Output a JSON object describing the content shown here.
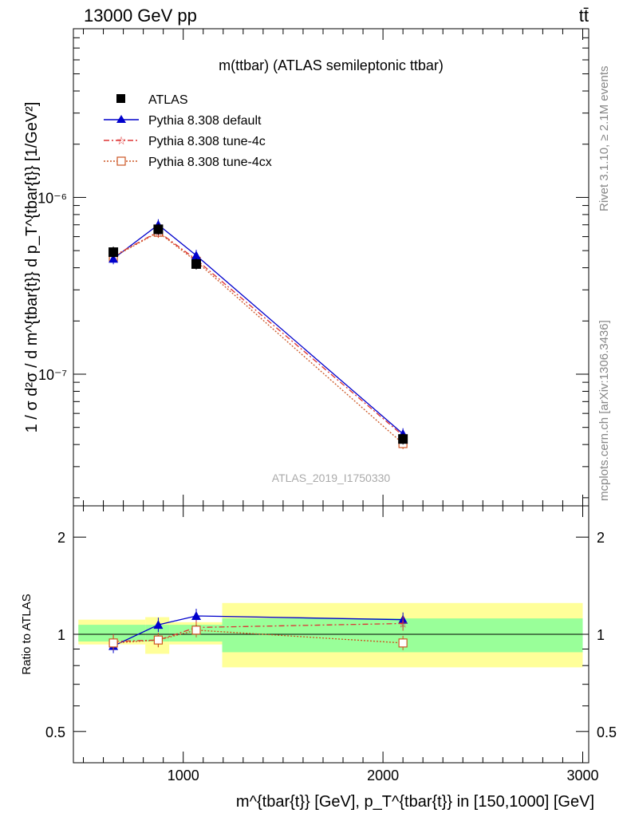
{
  "header": {
    "energy": "13000 GeV pp",
    "process": "tt̄",
    "right_top": "Rivet 3.1.10, ≥ 2.1M events",
    "right_bottom": "mcplots.cern.ch [arXiv:1306.3436]"
  },
  "chart_data": [
    {
      "type": "line",
      "title": "m(ttbar) (ATLAS semileptonic ttbar)",
      "analysis_id": "ATLAS_2019_I1750330",
      "ylabel": "1 / σ d²σ / d m^{tbar{t}} d p_T^{tbar{t}} [1/GeV²]",
      "yscale": "log",
      "ylim": [
        1.8e-08,
        9e-06
      ],
      "xlim": [
        450,
        3030
      ],
      "ytick_labels": [
        "10⁻⁷",
        "10⁻⁶"
      ],
      "legend_position": "top-left",
      "x": [
        650,
        875,
        1065,
        2100
      ],
      "series": [
        {
          "name": "ATLAS",
          "color": "#000000",
          "marker": "square-filled",
          "values": [
            4.9e-07,
            6.6e-07,
            4.2e-07,
            4.3e-08
          ]
        },
        {
          "name": "Pythia 8.308 default",
          "color": "#0000cc",
          "marker": "triangle",
          "values": [
            4.5e-07,
            7e-07,
            4.7e-07,
            4.6e-08
          ]
        },
        {
          "name": "Pythia 8.308 tune-4c",
          "color": "#dd3333",
          "marker": "star",
          "values": [
            4.65e-07,
            6.4e-07,
            4.45e-07,
            4.5e-08
          ]
        },
        {
          "name": "Pythia 8.308 tune-4cx",
          "color": "#cc5522",
          "marker": "square-open",
          "values": [
            4.6e-07,
            6.35e-07,
            4.35e-07,
            4.05e-08
          ]
        }
      ]
    },
    {
      "type": "line",
      "ylabel": "Ratio to ATLAS",
      "xlabel": "m^{tbar{t}} [GeV], p_T^{tbar{t}} in [150,1000] [GeV]",
      "yscale": "log",
      "ylim": [
        0.4,
        2.5
      ],
      "xlim": [
        450,
        3030
      ],
      "ytick_labels": [
        "0.5",
        "1",
        "2"
      ],
      "xtick_labels": [
        "1000",
        "2000",
        "3000"
      ],
      "x": [
        650,
        875,
        1065,
        2100
      ],
      "bins": [
        [
          475,
          810
        ],
        [
          810,
          930
        ],
        [
          930,
          1195
        ],
        [
          1195,
          3000
        ]
      ],
      "band_inner": [
        [
          0.95,
          1.07
        ],
        [
          0.95,
          1.07
        ],
        [
          0.95,
          1.07
        ],
        [
          0.88,
          1.12
        ]
      ],
      "band_outer": [
        [
          0.93,
          1.11
        ],
        [
          0.87,
          1.13
        ],
        [
          0.93,
          1.09
        ],
        [
          0.79,
          1.25
        ]
      ],
      "series": [
        {
          "name": "Pythia 8.308 default",
          "values": [
            0.92,
            1.07,
            1.14,
            1.11
          ]
        },
        {
          "name": "Pythia 8.308 tune-4c",
          "values": [
            0.95,
            0.96,
            1.05,
            1.08
          ]
        },
        {
          "name": "Pythia 8.308 tune-4cx",
          "values": [
            0.94,
            0.96,
            1.03,
            0.94
          ]
        }
      ]
    }
  ]
}
